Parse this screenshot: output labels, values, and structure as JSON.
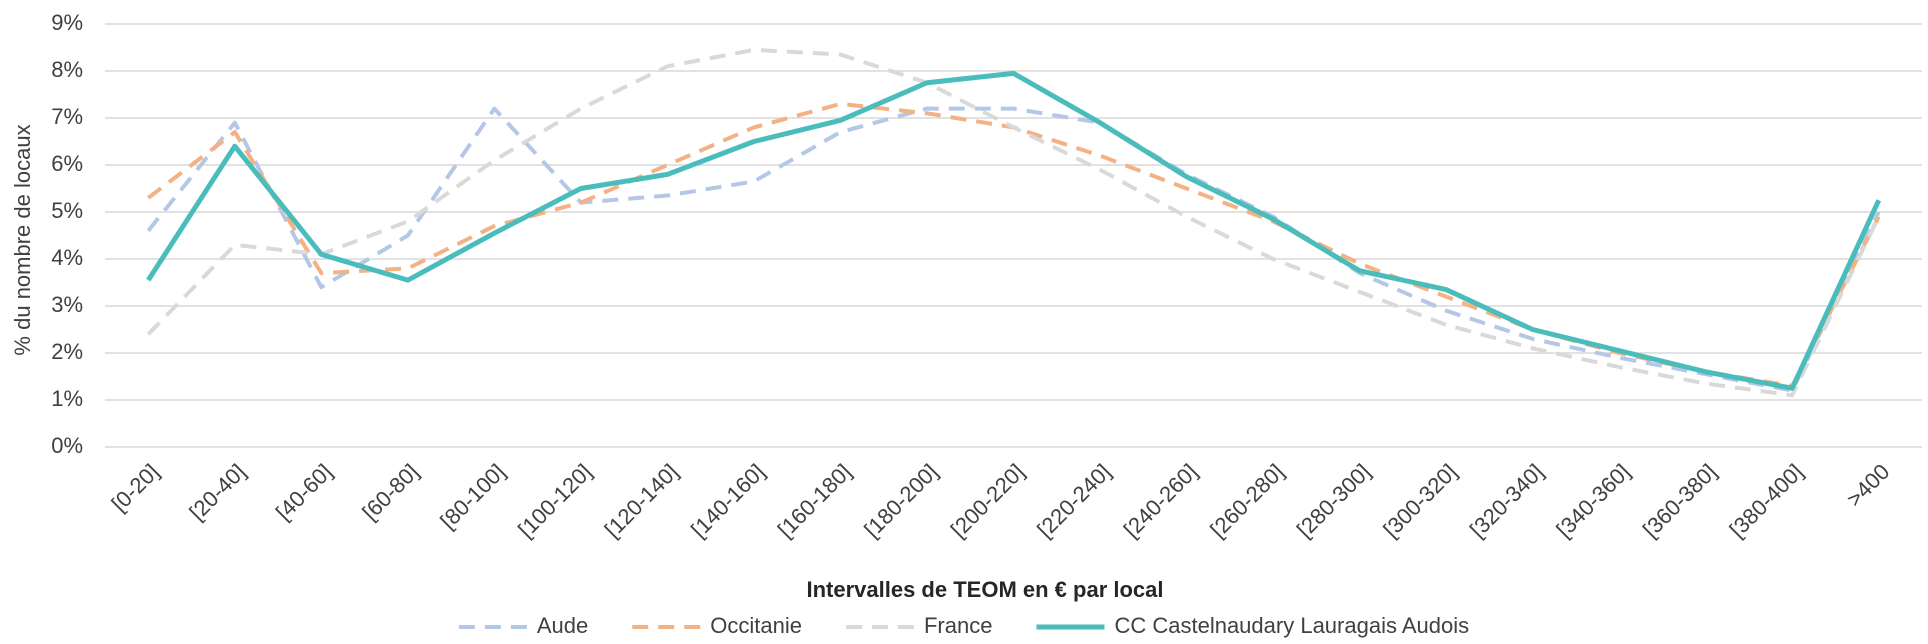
{
  "chart_data": {
    "type": "line",
    "x_label": "Intervalles de TEOM en € par local",
    "y_label": "% du nombre de locaux",
    "categories": [
      "[0-20]",
      "[20-40]",
      "[40-60]",
      "[60-80]",
      "[80-100]",
      "[100-120]",
      "[120-140]",
      "[140-160]",
      "[160-180]",
      "[180-200]",
      "[200-220]",
      "[220-240]",
      "[240-260]",
      "[260-280]",
      "[280-300]",
      "[300-320]",
      "[320-340]",
      "[340-360]",
      "[360-380]",
      "[380-400]",
      ">400"
    ],
    "series": [
      {
        "name": "Aude",
        "color": "#b4c7e7",
        "line_style": "dashed",
        "values": [
          4.6,
          6.9,
          3.4,
          4.5,
          7.2,
          5.2,
          5.35,
          5.65,
          6.7,
          7.2,
          7.2,
          6.9,
          5.8,
          4.9,
          3.7,
          2.9,
          2.3,
          1.9,
          1.55,
          1.2,
          5.0
        ]
      },
      {
        "name": "Occitanie",
        "color": "#f4b183",
        "line_style": "dashed",
        "values": [
          5.3,
          6.7,
          3.7,
          3.8,
          4.7,
          5.2,
          6.0,
          6.8,
          7.3,
          7.1,
          6.8,
          6.2,
          5.5,
          4.8,
          3.9,
          3.2,
          2.5,
          2.0,
          1.6,
          1.3,
          4.9
        ]
      },
      {
        "name": "France",
        "color": "#d9d9d9",
        "line_style": "dashed",
        "values": [
          2.4,
          4.3,
          4.1,
          4.8,
          6.1,
          7.2,
          8.1,
          8.45,
          8.35,
          7.75,
          6.8,
          5.9,
          4.9,
          4.0,
          3.3,
          2.6,
          2.1,
          1.7,
          1.35,
          1.1,
          4.9
        ]
      },
      {
        "name": "CC Castelnaudary Lauragais Audois",
        "color": "#4bbcbc",
        "line_style": "solid",
        "values": [
          3.55,
          6.4,
          4.1,
          3.55,
          4.55,
          5.5,
          5.8,
          6.5,
          6.95,
          7.75,
          7.95,
          6.9,
          5.75,
          4.85,
          3.75,
          3.35,
          2.5,
          2.05,
          1.6,
          1.25,
          5.25
        ]
      }
    ],
    "ylim": [
      0,
      9
    ],
    "yticks": [
      {
        "value": 0,
        "label": "0%"
      },
      {
        "value": 1,
        "label": "1%"
      },
      {
        "value": 2,
        "label": "2%"
      },
      {
        "value": 3,
        "label": "3%"
      },
      {
        "value": 4,
        "label": "4%"
      },
      {
        "value": 5,
        "label": "5%"
      },
      {
        "value": 6,
        "label": "6%"
      },
      {
        "value": 7,
        "label": "7%"
      },
      {
        "value": 8,
        "label": "8%"
      },
      {
        "value": 9,
        "label": "9%"
      }
    ],
    "grid": true,
    "legend": "bottom"
  }
}
